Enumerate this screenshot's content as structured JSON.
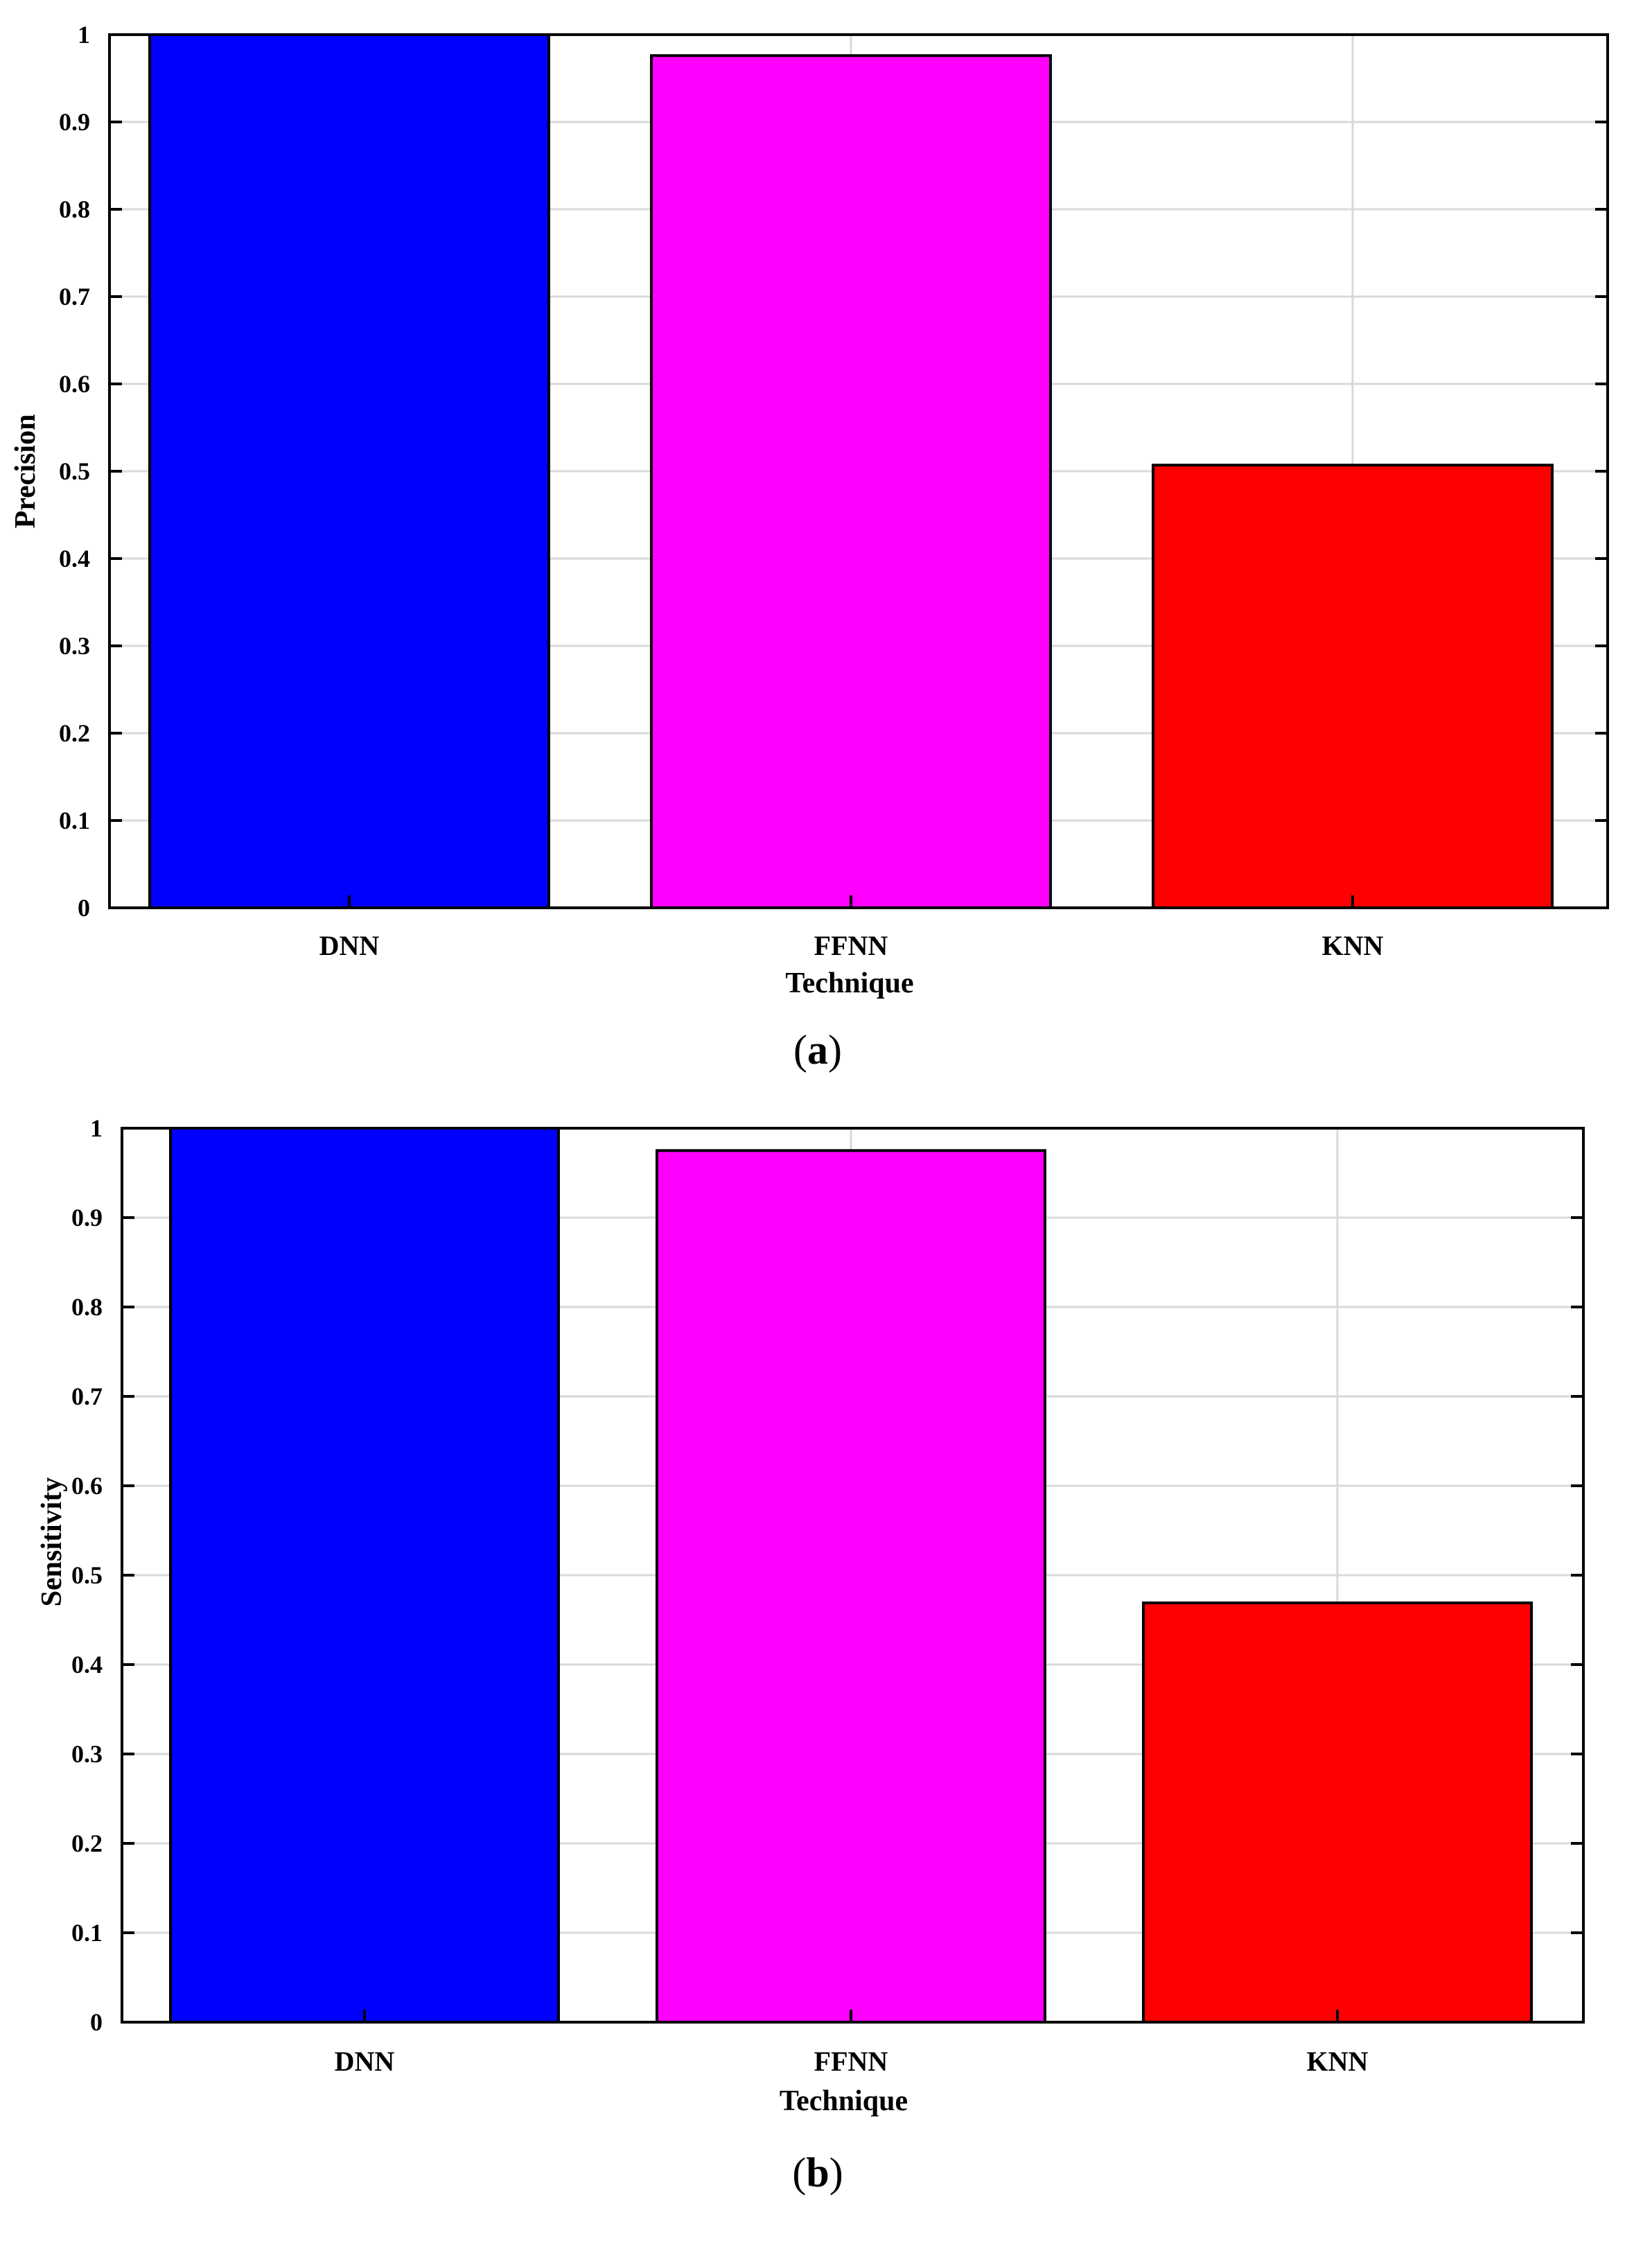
{
  "chart_data": [
    {
      "type": "bar",
      "panel_label": "a",
      "categories": [
        "DNN",
        "FFNN",
        "KNN"
      ],
      "values": [
        1.0,
        0.976,
        0.507
      ],
      "colors": [
        "#0000ff",
        "#ff00ff",
        "#ff0000"
      ],
      "xlabel": "Technique",
      "ylabel": "Precision",
      "ylim": [
        0,
        1
      ],
      "yticks": [
        "0",
        "0.1",
        "0.2",
        "0.3",
        "0.4",
        "0.5",
        "0.6",
        "0.7",
        "0.8",
        "0.9",
        "1"
      ],
      "grid": true
    },
    {
      "type": "bar",
      "panel_label": "b",
      "categories": [
        "DNN",
        "FFNN",
        "KNN"
      ],
      "values": [
        1.0,
        0.975,
        0.469
      ],
      "colors": [
        "#0000ff",
        "#ff00ff",
        "#ff0000"
      ],
      "xlabel": "Technique",
      "ylabel": "Sensitivity",
      "ylim": [
        0,
        1
      ],
      "yticks": [
        "0",
        "0.1",
        "0.2",
        "0.3",
        "0.4",
        "0.5",
        "0.6",
        "0.7",
        "0.8",
        "0.9",
        "1"
      ],
      "grid": true
    }
  ]
}
